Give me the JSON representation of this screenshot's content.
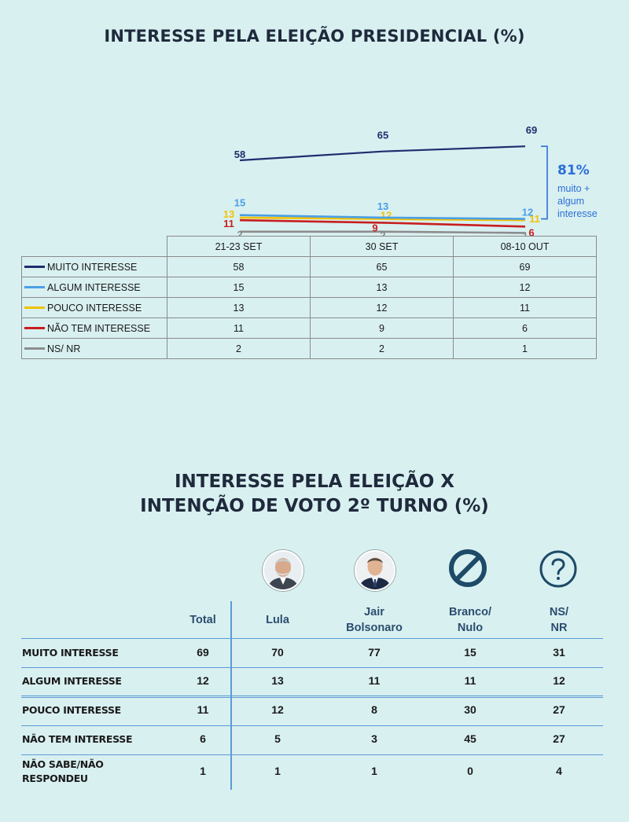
{
  "chart_data": [
    {
      "type": "line",
      "title": "INTERESSE PELA ELEIÇÃO PRESIDENCIAL (%)",
      "categories": [
        "21-23 SET",
        "30 SET",
        "08-10 OUT"
      ],
      "series": [
        {
          "name": "MUITO INTERESSE",
          "values": [
            58,
            65,
            69
          ],
          "color": "#1f2e6e"
        },
        {
          "name": "ALGUM INTERESSE",
          "values": [
            15,
            13,
            12
          ],
          "color": "#4a9fe6"
        },
        {
          "name": "POUCO INTERESSE",
          "values": [
            13,
            12,
            11
          ],
          "color": "#f2c200"
        },
        {
          "name": "NÃO TEM INTERESSE",
          "values": [
            11,
            9,
            6
          ],
          "color": "#c81e1e"
        },
        {
          "name": "NS/ NR",
          "values": [
            2,
            2,
            1
          ],
          "color": "#8c8c8c"
        }
      ],
      "annotation": {
        "value": "81%",
        "text": [
          "muito +",
          "algum",
          "interesse"
        ],
        "color": "#2d6fd8"
      },
      "legend": "table-below",
      "grid": false
    },
    {
      "type": "table",
      "title_lines": [
        "INTERESSE PELA ELEIÇÃO X",
        "INTENÇÃO DE VOTO 2º TURNO (%)"
      ],
      "columns": [
        {
          "label": [
            "Total"
          ],
          "icon": ""
        },
        {
          "label": [
            "Lula"
          ],
          "icon": "lula-photo"
        },
        {
          "label": [
            "Jair",
            "Bolsonaro"
          ],
          "icon": "bolsonaro-photo"
        },
        {
          "label": [
            "Branco/",
            "Nulo"
          ],
          "icon": "prohibited-icon"
        },
        {
          "label": [
            "NS/",
            "NR"
          ],
          "icon": "question-icon"
        }
      ],
      "rows": [
        {
          "label": [
            "MUITO INTERESSE"
          ],
          "values": [
            69,
            70,
            77,
            15,
            31
          ]
        },
        {
          "label": [
            "ALGUM INTERESSE"
          ],
          "values": [
            12,
            13,
            11,
            11,
            12
          ]
        },
        {
          "label": [
            "POUCO INTERESSE"
          ],
          "values": [
            11,
            12,
            8,
            30,
            27
          ]
        },
        {
          "label": [
            "NÃO TEM INTERESSE"
          ],
          "values": [
            6,
            5,
            3,
            45,
            27
          ]
        },
        {
          "label": [
            "NÃO SABE/NÃO",
            "RESPONDEU"
          ],
          "values": [
            1,
            1,
            1,
            0,
            4
          ]
        }
      ],
      "accent": "#5b9bd5",
      "icon_color": "#1d4a67"
    }
  ]
}
